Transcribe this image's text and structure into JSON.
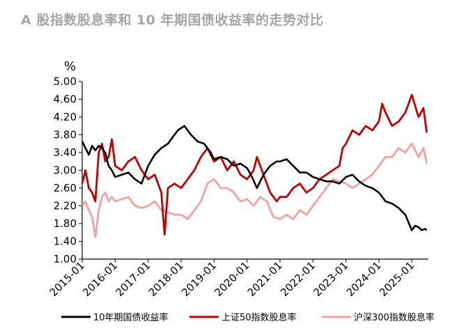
{
  "title": "A 股指数股息率和 10 年期国债收益率的走势对比",
  "chart_data": {
    "type": "line",
    "title": "A 股指数股息率和 10 年期国债收益率的走势对比",
    "ylabel": "%",
    "ylim": [
      1.0,
      5.0
    ],
    "yticks": [
      "5.00",
      "4.60",
      "4.20",
      "3.80",
      "3.40",
      "3.00",
      "2.60",
      "2.20",
      "1.80",
      "1.40",
      "1.00"
    ],
    "xticks": [
      "2015-01",
      "2016-01",
      "2017-01",
      "2018-01",
      "2019-01",
      "2020-01",
      "2021-01",
      "2022-01",
      "2023-01",
      "2024-01",
      "2025-01"
    ],
    "x_range": [
      2015.0,
      2025.5
    ],
    "legend_position": "bottom",
    "grid": false,
    "series": [
      {
        "name": "10年期国债收益率",
        "color": "#000000",
        "x": [
          2015.0,
          2015.1,
          2015.2,
          2015.3,
          2015.4,
          2015.5,
          2015.6,
          2015.7,
          2015.8,
          2015.9,
          2016.0,
          2016.2,
          2016.4,
          2016.6,
          2016.8,
          2017.0,
          2017.2,
          2017.4,
          2017.6,
          2017.8,
          2017.9,
          2018.0,
          2018.1,
          2018.3,
          2018.5,
          2018.7,
          2018.9,
          2019.0,
          2019.2,
          2019.4,
          2019.6,
          2019.8,
          2020.0,
          2020.15,
          2020.3,
          2020.5,
          2020.7,
          2020.9,
          2021.0,
          2021.2,
          2021.4,
          2021.6,
          2021.8,
          2022.0,
          2022.2,
          2022.4,
          2022.6,
          2022.8,
          2023.0,
          2023.2,
          2023.4,
          2023.6,
          2023.8,
          2024.0,
          2024.2,
          2024.4,
          2024.6,
          2024.8,
          2025.0,
          2025.1,
          2025.2,
          2025.3,
          2025.4,
          2025.45
        ],
        "values": [
          3.65,
          3.5,
          3.35,
          3.55,
          3.45,
          3.55,
          3.5,
          3.4,
          3.1,
          3.0,
          2.85,
          2.9,
          2.95,
          2.8,
          2.7,
          3.1,
          3.35,
          3.5,
          3.6,
          3.8,
          3.9,
          3.95,
          4.0,
          3.8,
          3.65,
          3.6,
          3.4,
          3.25,
          3.3,
          3.25,
          3.1,
          3.15,
          3.05,
          2.85,
          2.6,
          2.9,
          3.1,
          3.2,
          3.2,
          3.25,
          3.1,
          2.95,
          2.95,
          2.85,
          2.8,
          2.75,
          2.75,
          2.7,
          2.85,
          2.9,
          2.75,
          2.65,
          2.6,
          2.5,
          2.3,
          2.25,
          2.15,
          2.0,
          1.65,
          1.75,
          1.72,
          1.65,
          1.68,
          1.65
        ]
      },
      {
        "name": "上证50指数股息率",
        "color": "#c00000",
        "x": [
          2015.0,
          2015.1,
          2015.2,
          2015.3,
          2015.4,
          2015.5,
          2015.6,
          2015.7,
          2015.8,
          2015.9,
          2016.0,
          2016.2,
          2016.4,
          2016.6,
          2016.8,
          2017.0,
          2017.2,
          2017.4,
          2017.5,
          2017.6,
          2017.8,
          2018.0,
          2018.2,
          2018.4,
          2018.6,
          2018.8,
          2019.0,
          2019.2,
          2019.4,
          2019.6,
          2019.8,
          2020.0,
          2020.2,
          2020.3,
          2020.5,
          2020.7,
          2020.9,
          2021.0,
          2021.2,
          2021.4,
          2021.6,
          2021.8,
          2022.0,
          2022.2,
          2022.4,
          2022.6,
          2022.8,
          2022.9,
          2023.0,
          2023.2,
          2023.4,
          2023.6,
          2023.8,
          2024.0,
          2024.1,
          2024.2,
          2024.4,
          2024.6,
          2024.8,
          2025.0,
          2025.2,
          2025.35,
          2025.45
        ],
        "values": [
          2.7,
          3.0,
          2.6,
          2.5,
          2.3,
          3.4,
          3.6,
          3.2,
          3.3,
          3.7,
          3.1,
          3.0,
          3.2,
          3.3,
          3.0,
          2.8,
          2.9,
          2.5,
          1.55,
          2.6,
          2.7,
          2.6,
          2.8,
          3.0,
          3.3,
          3.5,
          3.2,
          3.3,
          3.0,
          3.2,
          2.9,
          2.8,
          3.0,
          3.3,
          2.9,
          2.5,
          2.3,
          2.4,
          2.4,
          2.6,
          2.7,
          2.5,
          2.6,
          2.8,
          2.9,
          3.0,
          3.1,
          3.5,
          3.6,
          3.9,
          3.8,
          4.0,
          3.9,
          4.1,
          4.5,
          4.3,
          4.0,
          4.1,
          4.3,
          4.7,
          4.2,
          4.4,
          3.85
        ]
      },
      {
        "name": "沪深300指数股息率",
        "color": "#f4a0a0",
        "x": [
          2015.0,
          2015.1,
          2015.2,
          2015.3,
          2015.4,
          2015.5,
          2015.6,
          2015.7,
          2015.8,
          2015.9,
          2016.0,
          2016.2,
          2016.4,
          2016.6,
          2016.8,
          2017.0,
          2017.2,
          2017.4,
          2017.6,
          2017.8,
          2018.0,
          2018.2,
          2018.4,
          2018.6,
          2018.8,
          2019.0,
          2019.2,
          2019.4,
          2019.6,
          2019.8,
          2020.0,
          2020.2,
          2020.4,
          2020.6,
          2020.8,
          2021.0,
          2021.2,
          2021.4,
          2021.6,
          2021.8,
          2022.0,
          2022.2,
          2022.4,
          2022.6,
          2022.8,
          2023.0,
          2023.2,
          2023.4,
          2023.6,
          2023.8,
          2024.0,
          2024.2,
          2024.4,
          2024.6,
          2024.8,
          2025.0,
          2025.2,
          2025.35,
          2025.45
        ],
        "values": [
          2.2,
          2.3,
          2.1,
          1.95,
          1.5,
          2.1,
          2.4,
          2.5,
          2.3,
          2.4,
          2.3,
          2.35,
          2.4,
          2.2,
          2.15,
          2.2,
          2.3,
          2.1,
          2.05,
          2.0,
          2.0,
          1.9,
          2.1,
          2.3,
          2.7,
          2.8,
          2.6,
          2.6,
          2.5,
          2.3,
          2.35,
          2.2,
          2.4,
          2.3,
          1.95,
          1.9,
          2.0,
          1.9,
          2.1,
          2.0,
          2.2,
          2.4,
          2.6,
          2.8,
          2.75,
          2.7,
          2.6,
          2.7,
          2.8,
          2.9,
          3.1,
          3.3,
          3.3,
          3.5,
          3.4,
          3.6,
          3.3,
          3.5,
          3.15
        ]
      }
    ]
  }
}
